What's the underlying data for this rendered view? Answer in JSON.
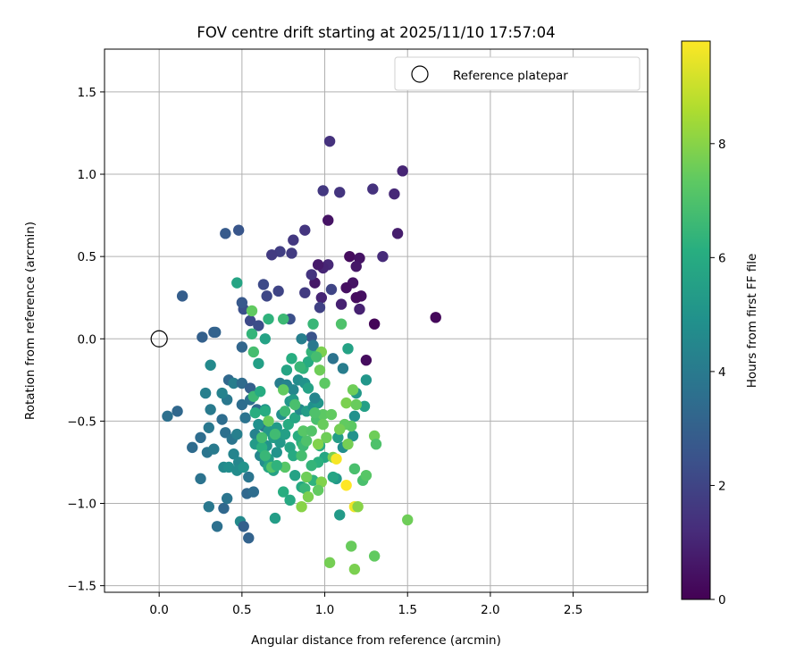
{
  "chart_data": {
    "type": "scatter",
    "title": "FOV centre drift starting at 2025/11/10 17:57:04",
    "xlabel": "Angular distance from reference (arcmin)",
    "ylabel": "Rotation from reference (arcmin)",
    "xlim": [
      -0.33,
      2.95
    ],
    "ylim": [
      -1.54,
      1.76
    ],
    "x_ticks": [
      0.0,
      0.5,
      1.0,
      1.5,
      2.0,
      2.5
    ],
    "x_tick_labels": [
      "0.0",
      "0.5",
      "1.0",
      "1.5",
      "2.0",
      "2.5"
    ],
    "y_ticks": [
      -1.5,
      -1.0,
      -0.5,
      0.0,
      0.5,
      1.0,
      1.5
    ],
    "y_tick_labels": [
      "−1.5",
      "−1.0",
      "−0.5",
      "0.0",
      "0.5",
      "1.0",
      "1.5"
    ],
    "grid": true,
    "legend": {
      "position": "top-right",
      "entries": [
        "Reference platepar"
      ]
    },
    "reference_point": {
      "x": 0.0,
      "y": 0.0
    },
    "colorbar": {
      "label": "Hours from first FF file",
      "colormap": "viridis",
      "range": [
        0,
        9.8
      ],
      "ticks": [
        0,
        2,
        4,
        6,
        8
      ],
      "tick_labels": [
        "0",
        "2",
        "4",
        "6",
        "8"
      ]
    },
    "points": [
      [
        1.67,
        0.13,
        0.2
      ],
      [
        1.3,
        0.09,
        0.1
      ],
      [
        1.25,
        -0.13,
        0.3
      ],
      [
        1.22,
        0.26,
        0.4
      ],
      [
        1.19,
        0.25,
        0.3
      ],
      [
        1.17,
        0.34,
        0.5
      ],
      [
        1.13,
        0.31,
        0.4
      ],
      [
        1.15,
        0.5,
        0.3
      ],
      [
        1.21,
        0.49,
        0.5
      ],
      [
        1.19,
        0.44,
        0.6
      ],
      [
        1.1,
        0.21,
        0.9
      ],
      [
        0.98,
        0.25,
        1.0
      ],
      [
        1.02,
        0.45,
        1.1
      ],
      [
        0.99,
        0.43,
        1.0
      ],
      [
        1.02,
        0.72,
        0.5
      ],
      [
        0.96,
        0.45,
        0.7
      ],
      [
        0.94,
        0.34,
        0.6
      ],
      [
        1.21,
        0.18,
        0.9
      ],
      [
        1.35,
        0.5,
        1.2
      ],
      [
        1.44,
        0.64,
        0.8
      ],
      [
        1.47,
        1.02,
        1.0
      ],
      [
        1.42,
        0.88,
        1.1
      ],
      [
        1.29,
        0.91,
        1.4
      ],
      [
        1.09,
        0.89,
        1.5
      ],
      [
        0.99,
        0.9,
        1.6
      ],
      [
        1.03,
        1.2,
        1.4
      ],
      [
        0.88,
        0.66,
        1.5
      ],
      [
        0.81,
        0.6,
        1.6
      ],
      [
        0.8,
        0.52,
        1.7
      ],
      [
        0.73,
        0.53,
        1.8
      ],
      [
        0.68,
        0.51,
        1.7
      ],
      [
        0.92,
        0.39,
        1.5
      ],
      [
        0.88,
        0.28,
        1.7
      ],
      [
        0.97,
        0.19,
        1.9
      ],
      [
        1.04,
        0.3,
        2.0
      ],
      [
        0.72,
        0.29,
        2.0
      ],
      [
        0.65,
        0.26,
        2.1
      ],
      [
        0.55,
        0.11,
        2.2
      ],
      [
        0.6,
        0.08,
        2.3
      ],
      [
        0.51,
        0.18,
        2.4
      ],
      [
        0.63,
        0.33,
        2.2
      ],
      [
        0.79,
        0.12,
        2.4
      ],
      [
        0.92,
        0.01,
        2.5
      ],
      [
        0.48,
        0.66,
        2.6
      ],
      [
        0.4,
        0.64,
        2.8
      ],
      [
        0.14,
        0.26,
        2.9
      ],
      [
        0.33,
        0.04,
        3.0
      ],
      [
        0.34,
        0.04,
        3.1
      ],
      [
        0.26,
        0.01,
        3.0
      ],
      [
        0.5,
        -0.05,
        3.2
      ],
      [
        0.5,
        0.22,
        2.7
      ],
      [
        0.05,
        -0.47,
        3.6
      ],
      [
        0.11,
        -0.44,
        3.3
      ],
      [
        0.2,
        -0.66,
        3.4
      ],
      [
        0.25,
        -0.6,
        3.5
      ],
      [
        0.25,
        -0.85,
        3.7
      ],
      [
        0.29,
        -0.69,
        3.8
      ],
      [
        0.3,
        -0.54,
        3.9
      ],
      [
        0.31,
        -0.43,
        4.0
      ],
      [
        0.28,
        -0.33,
        4.2
      ],
      [
        0.31,
        -0.16,
        4.6
      ],
      [
        0.3,
        -1.02,
        3.9
      ],
      [
        0.35,
        -1.14,
        3.6
      ],
      [
        0.39,
        -1.03,
        3.3
      ],
      [
        0.41,
        -0.97,
        3.8
      ],
      [
        0.38,
        -0.49,
        3.5
      ],
      [
        0.42,
        -0.25,
        3.3
      ],
      [
        0.45,
        -0.27,
        4.1
      ],
      [
        0.41,
        -0.37,
        3.9
      ],
      [
        0.38,
        -0.33,
        4.3
      ],
      [
        0.33,
        -0.67,
        4.0
      ],
      [
        0.4,
        -0.57,
        3.6
      ],
      [
        0.44,
        -0.61,
        3.8
      ],
      [
        0.47,
        -0.58,
        4.2
      ],
      [
        0.45,
        -0.7,
        4.4
      ],
      [
        0.48,
        -0.75,
        4.5
      ],
      [
        0.39,
        -0.78,
        4.6
      ],
      [
        0.42,
        -0.78,
        4.8
      ],
      [
        0.47,
        -0.8,
        4.7
      ],
      [
        0.51,
        -0.78,
        5.0
      ],
      [
        0.54,
        -0.84,
        3.8
      ],
      [
        0.53,
        -0.94,
        3.3
      ],
      [
        0.57,
        -0.93,
        3.5
      ],
      [
        0.49,
        -1.11,
        4.6
      ],
      [
        0.51,
        -1.14,
        3.0
      ],
      [
        0.54,
        -1.21,
        3.1
      ],
      [
        0.52,
        -0.48,
        3.7
      ],
      [
        0.5,
        -0.4,
        3.5
      ],
      [
        0.55,
        -0.37,
        3.6
      ],
      [
        0.5,
        -0.27,
        3.4
      ],
      [
        0.55,
        -0.3,
        3.0
      ],
      [
        0.59,
        -0.43,
        3.3
      ],
      [
        0.63,
        -0.53,
        3.5
      ],
      [
        0.62,
        -0.63,
        4.0
      ],
      [
        0.58,
        -0.58,
        4.3
      ],
      [
        0.61,
        -0.71,
        4.5
      ],
      [
        0.64,
        -0.75,
        4.8
      ],
      [
        0.6,
        -0.52,
        4.9
      ],
      [
        0.65,
        -0.65,
        5.0
      ],
      [
        0.66,
        -0.56,
        5.2
      ],
      [
        0.69,
        -0.6,
        5.4
      ],
      [
        0.58,
        -0.64,
        5.3
      ],
      [
        0.66,
        -0.73,
        5.5
      ],
      [
        0.69,
        -0.8,
        5.6
      ],
      [
        0.66,
        -0.78,
        5.8
      ],
      [
        0.71,
        -0.69,
        5.0
      ],
      [
        0.73,
        -0.63,
        5.2
      ],
      [
        0.71,
        -0.54,
        5.3
      ],
      [
        0.74,
        -0.46,
        4.8
      ],
      [
        0.76,
        -0.58,
        5.5
      ],
      [
        0.79,
        -0.66,
        5.7
      ],
      [
        0.81,
        -0.71,
        5.9
      ],
      [
        0.78,
        -0.52,
        6.0
      ],
      [
        0.82,
        -0.48,
        5.8
      ],
      [
        0.84,
        -0.59,
        6.1
      ],
      [
        0.86,
        -0.63,
        6.2
      ],
      [
        0.82,
        -0.83,
        5.6
      ],
      [
        0.86,
        -0.9,
        5.9
      ],
      [
        0.85,
        -0.43,
        4.6
      ],
      [
        0.73,
        -0.27,
        4.1
      ],
      [
        0.77,
        -0.28,
        4.3
      ],
      [
        0.81,
        -0.31,
        4.5
      ],
      [
        0.84,
        -0.25,
        4.7
      ],
      [
        0.88,
        -0.27,
        5.0
      ],
      [
        0.79,
        -0.38,
        5.1
      ],
      [
        0.81,
        -0.37,
        5.3
      ],
      [
        0.89,
        -0.44,
        5.4
      ],
      [
        0.9,
        -0.3,
        5.6
      ],
      [
        0.93,
        -0.41,
        4.9
      ],
      [
        0.96,
        -0.39,
        5.1
      ],
      [
        0.94,
        -0.36,
        4.4
      ],
      [
        0.77,
        -0.19,
        5.7
      ],
      [
        0.8,
        -0.12,
        6.1
      ],
      [
        0.87,
        -0.18,
        6.3
      ],
      [
        0.9,
        -0.14,
        6.0
      ],
      [
        0.92,
        -0.08,
        6.4
      ],
      [
        0.93,
        0.09,
        6.5
      ],
      [
        0.86,
        0.0,
        4.2
      ],
      [
        0.93,
        -0.04,
        3.9
      ],
      [
        1.05,
        -0.12,
        3.7
      ],
      [
        1.11,
        -0.18,
        4.1
      ],
      [
        1.14,
        -0.06,
        5.6
      ],
      [
        1.19,
        -0.33,
        5.2
      ],
      [
        1.24,
        -0.41,
        5.5
      ],
      [
        1.25,
        -0.25,
        5.1
      ],
      [
        1.18,
        -0.47,
        4.9
      ],
      [
        1.17,
        -0.59,
        5.0
      ],
      [
        1.11,
        -0.66,
        4.8
      ],
      [
        1.08,
        -0.6,
        5.4
      ],
      [
        1.07,
        -0.85,
        5.2
      ],
      [
        1.09,
        -1.07,
        5.3
      ],
      [
        1.05,
        -0.84,
        5.7
      ],
      [
        1.0,
        -0.72,
        5.8
      ],
      [
        0.97,
        -0.65,
        6.0
      ],
      [
        0.96,
        -0.75,
        6.2
      ],
      [
        0.93,
        -0.86,
        6.3
      ],
      [
        0.88,
        -0.91,
        6.5
      ],
      [
        0.92,
        -0.77,
        6.4
      ],
      [
        0.87,
        -0.65,
        6.6
      ],
      [
        0.86,
        -0.71,
        6.8
      ],
      [
        0.89,
        -0.62,
        7.0
      ],
      [
        0.87,
        -0.56,
        7.2
      ],
      [
        0.92,
        -0.56,
        7.1
      ],
      [
        0.95,
        -0.49,
        6.9
      ],
      [
        0.99,
        -0.46,
        7.3
      ],
      [
        0.94,
        -0.45,
        7.0
      ],
      [
        1.04,
        -0.46,
        7.4
      ],
      [
        0.99,
        -0.52,
        7.5
      ],
      [
        1.01,
        -0.6,
        7.6
      ],
      [
        1.05,
        -0.72,
        7.8
      ],
      [
        1.0,
        -0.27,
        7.3
      ],
      [
        0.97,
        -0.19,
        7.6
      ],
      [
        0.98,
        -0.08,
        7.8
      ],
      [
        0.95,
        -0.11,
        6.8
      ],
      [
        0.85,
        -0.17,
        6.5
      ],
      [
        0.75,
        -0.31,
        7.4
      ],
      [
        0.76,
        -0.44,
        6.6
      ],
      [
        0.82,
        -0.4,
        6.9
      ],
      [
        0.64,
        -0.43,
        5.1
      ],
      [
        0.64,
        -0.44,
        6.0
      ],
      [
        0.66,
        -0.5,
        7.5
      ],
      [
        0.7,
        -0.58,
        6.7
      ],
      [
        0.62,
        -0.66,
        6.2
      ],
      [
        0.64,
        -0.71,
        6.5
      ],
      [
        0.68,
        -0.78,
        7.1
      ],
      [
        0.76,
        -0.78,
        7.2
      ],
      [
        0.71,
        -0.77,
        6.3
      ],
      [
        0.75,
        -0.93,
        6.1
      ],
      [
        0.79,
        -0.98,
        5.9
      ],
      [
        0.7,
        -1.09,
        5.4
      ],
      [
        0.62,
        -0.6,
        6.8
      ],
      [
        0.58,
        -0.45,
        6.1
      ],
      [
        0.57,
        -0.35,
        6.6
      ],
      [
        0.61,
        -0.32,
        6.0
      ],
      [
        0.6,
        -0.15,
        5.5
      ],
      [
        0.57,
        -0.08,
        6.8
      ],
      [
        0.56,
        0.03,
        6.4
      ],
      [
        0.56,
        0.17,
        7.4
      ],
      [
        0.66,
        0.12,
        6.3
      ],
      [
        0.64,
        0.0,
        5.6
      ],
      [
        0.47,
        0.34,
        5.7
      ],
      [
        0.75,
        0.12,
        6.6
      ],
      [
        1.1,
        0.09,
        7.0
      ],
      [
        1.13,
        -0.39,
        7.8
      ],
      [
        1.17,
        -0.31,
        7.6
      ],
      [
        1.19,
        -0.4,
        7.5
      ],
      [
        1.16,
        -0.53,
        7.3
      ],
      [
        1.14,
        -0.64,
        7.7
      ],
      [
        1.12,
        -0.52,
        7.4
      ],
      [
        1.09,
        -0.55,
        7.7
      ],
      [
        1.23,
        -0.86,
        6.9
      ],
      [
        1.25,
        -0.83,
        7.2
      ],
      [
        1.3,
        -0.59,
        7.6
      ],
      [
        1.31,
        -0.64,
        7.0
      ],
      [
        1.18,
        -0.79,
        6.9
      ],
      [
        1.07,
        -0.73,
        9.7
      ],
      [
        1.13,
        -0.89,
        9.8
      ],
      [
        1.18,
        -1.02,
        9.6
      ],
      [
        1.2,
        -1.02,
        8.0
      ],
      [
        1.03,
        -1.36,
        7.7
      ],
      [
        1.18,
        -1.4,
        7.8
      ],
      [
        1.16,
        -1.26,
        7.5
      ],
      [
        1.3,
        -1.32,
        7.4
      ],
      [
        1.5,
        -1.1,
        7.6
      ],
      [
        0.98,
        -0.87,
        7.9
      ],
      [
        0.96,
        -0.92,
        7.4
      ],
      [
        0.89,
        -0.84,
        7.6
      ],
      [
        0.86,
        -1.02,
        8.0
      ],
      [
        0.9,
        -0.96,
        7.8
      ],
      [
        0.96,
        -0.64,
        7.9
      ]
    ]
  }
}
